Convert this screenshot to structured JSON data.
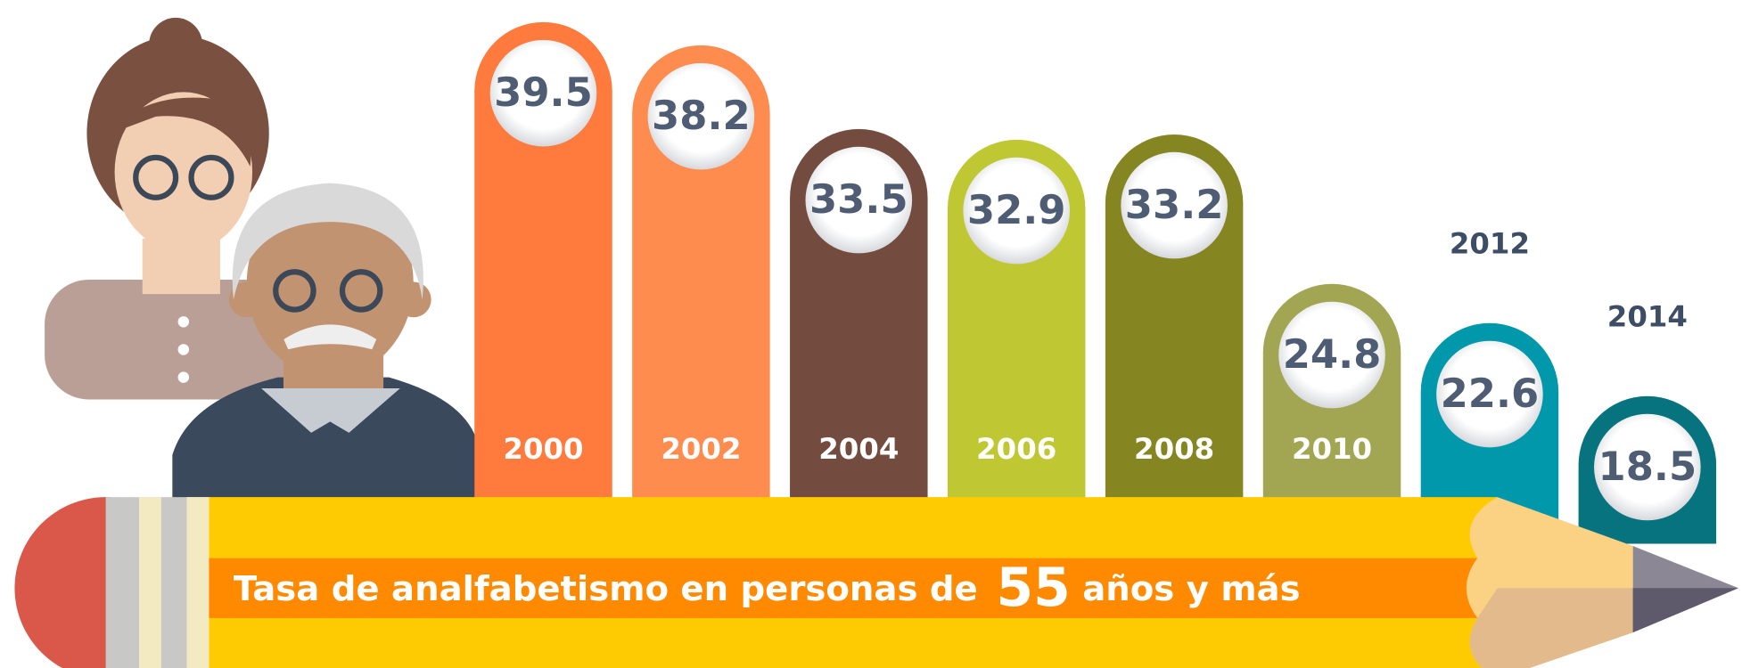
{
  "chart_data": {
    "type": "bar",
    "title": "Tasa de analfabetismo en personas de 55 años y más",
    "categories": [
      "2000",
      "2002",
      "2004",
      "2006",
      "2008",
      "2010",
      "2012",
      "2014"
    ],
    "values": [
      39.5,
      38.2,
      33.5,
      32.9,
      33.2,
      24.8,
      22.6,
      18.5
    ],
    "colors": [
      "#ff7a3d",
      "#ff8c4f",
      "#744b3f",
      "#bfc833",
      "#858622",
      "#a2a552",
      "#0298ac",
      "#06737e"
    ]
  }
}
